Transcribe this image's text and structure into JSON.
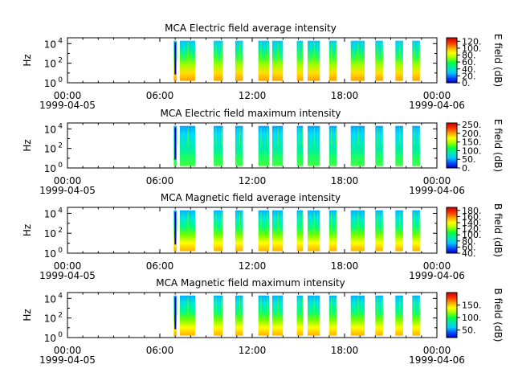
{
  "figure": {
    "x_tick_labels": [
      "00:00",
      "06:00",
      "12:00",
      "18:00",
      "00:00"
    ],
    "x_hours": [
      0,
      6,
      12,
      18,
      24
    ],
    "date_start": "1999-04-05",
    "date_end": "1999-04-06",
    "colors": {
      "colormap": [
        "#0000c8",
        "#0050ff",
        "#00c8ff",
        "#00e8b0",
        "#00ff40",
        "#a0ff00",
        "#ffff00",
        "#ffa000",
        "#ff3000",
        "#c80000"
      ]
    }
  },
  "chart_data": [
    {
      "type": "heatmap",
      "title": "MCA  Electric field average intensity",
      "ylabel": "Hz",
      "y_scale": "log",
      "y_tick_labels": [
        {
          "base": "10",
          "exp": "0"
        },
        {
          "base": "10",
          "exp": "2"
        },
        {
          "base": "10",
          "exp": "4"
        }
      ],
      "xlim_hours": [
        0,
        24
      ],
      "data_segments_hours": [
        [
          6.9,
          7.1
        ],
        [
          7.3,
          8.3
        ],
        [
          9.5,
          10.1
        ],
        [
          10.9,
          11.4
        ],
        [
          12.4,
          13.1
        ],
        [
          13.3,
          14.0
        ],
        [
          14.9,
          15.3
        ],
        [
          15.6,
          16.4
        ],
        [
          17.0,
          17.5
        ],
        [
          18.4,
          19.3
        ],
        [
          20.0,
          20.5
        ],
        [
          21.3,
          21.8
        ],
        [
          22.4,
          22.9
        ]
      ],
      "colorbar": {
        "label": "E field (dB)",
        "range": [
          0,
          130
        ],
        "tick_values": [
          0,
          20,
          40,
          60,
          80,
          100,
          120
        ],
        "tick_labels": [
          "0.",
          "20.",
          "40.",
          "60.",
          "80.",
          "100.",
          "120."
        ]
      },
      "level": "mid"
    },
    {
      "type": "heatmap",
      "title": "MCA  Electric field maximum intensity",
      "ylabel": "Hz",
      "y_scale": "log",
      "y_tick_labels": [
        {
          "base": "10",
          "exp": "0"
        },
        {
          "base": "10",
          "exp": "2"
        },
        {
          "base": "10",
          "exp": "4"
        }
      ],
      "xlim_hours": [
        0,
        24
      ],
      "data_segments_hours": [
        [
          6.9,
          7.1
        ],
        [
          7.3,
          8.3
        ],
        [
          9.5,
          10.1
        ],
        [
          10.9,
          11.4
        ],
        [
          12.4,
          13.1
        ],
        [
          13.3,
          14.0
        ],
        [
          14.9,
          15.3
        ],
        [
          15.6,
          16.4
        ],
        [
          17.0,
          17.5
        ],
        [
          18.4,
          19.3
        ],
        [
          20.0,
          20.5
        ],
        [
          21.3,
          21.8
        ],
        [
          22.4,
          22.9
        ]
      ],
      "colorbar": {
        "label": "E field (dB)",
        "range": [
          0,
          260
        ],
        "tick_values": [
          0,
          50,
          100,
          150,
          200,
          250
        ],
        "tick_labels": [
          "0.",
          "50.",
          "100.",
          "150.",
          "200.",
          "250."
        ]
      },
      "level": "low"
    },
    {
      "type": "heatmap",
      "title": "MCA  Magnetic field average intensity",
      "ylabel": "Hz",
      "y_scale": "log",
      "y_tick_labels": [
        {
          "base": "10",
          "exp": "0"
        },
        {
          "base": "10",
          "exp": "2"
        },
        {
          "base": "10",
          "exp": "4"
        }
      ],
      "xlim_hours": [
        0,
        24
      ],
      "data_segments_hours": [
        [
          6.9,
          7.1
        ],
        [
          7.3,
          8.3
        ],
        [
          9.5,
          10.1
        ],
        [
          10.9,
          11.4
        ],
        [
          12.4,
          13.1
        ],
        [
          13.3,
          14.0
        ],
        [
          14.9,
          15.3
        ],
        [
          15.6,
          16.4
        ],
        [
          17.0,
          17.5
        ],
        [
          18.4,
          19.3
        ],
        [
          20.0,
          20.5
        ],
        [
          21.3,
          21.8
        ],
        [
          22.4,
          22.9
        ]
      ],
      "colorbar": {
        "label": "B field (dB)",
        "range": [
          40,
          190
        ],
        "tick_values": [
          40,
          60,
          80,
          100,
          120,
          140,
          160,
          180
        ],
        "tick_labels": [
          "40.",
          "60.",
          "80.",
          "100.",
          "120.",
          "140.",
          "160.",
          "180."
        ]
      },
      "level": "gradient"
    },
    {
      "type": "heatmap",
      "title": "MCA  Magnetic field maximum intensity",
      "ylabel": "Hz",
      "y_scale": "log",
      "y_tick_labels": [
        {
          "base": "10",
          "exp": "0"
        },
        {
          "base": "10",
          "exp": "2"
        },
        {
          "base": "10",
          "exp": "4"
        }
      ],
      "xlim_hours": [
        0,
        24
      ],
      "data_segments_hours": [
        [
          6.9,
          7.1
        ],
        [
          7.3,
          8.3
        ],
        [
          9.5,
          10.1
        ],
        [
          10.9,
          11.4
        ],
        [
          12.4,
          13.1
        ],
        [
          13.3,
          14.0
        ],
        [
          14.9,
          15.3
        ],
        [
          15.6,
          16.4
        ],
        [
          17.0,
          17.5
        ],
        [
          18.4,
          19.3
        ],
        [
          20.0,
          20.5
        ],
        [
          21.3,
          21.8
        ],
        [
          22.4,
          22.9
        ]
      ],
      "colorbar": {
        "label": "B field (dB)",
        "range": [
          20,
          200
        ],
        "tick_values": [
          50,
          100,
          150
        ],
        "tick_labels": [
          "50.",
          "100.",
          "150."
        ]
      },
      "level": "gradient"
    }
  ]
}
